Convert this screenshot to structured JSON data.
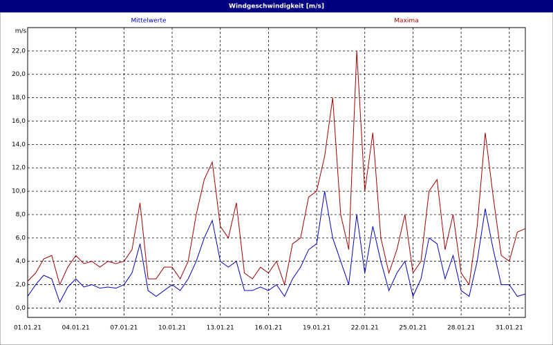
{
  "chart_data": {
    "type": "line",
    "title": "Windgeschwindigkeit [m/s]",
    "ylabel": "m/s",
    "x": [
      0,
      0.5,
      1,
      1.5,
      2,
      2.5,
      3,
      3.5,
      4,
      4.5,
      5,
      5.5,
      6,
      6.5,
      7,
      7.5,
      8,
      8.5,
      9,
      9.5,
      10,
      10.5,
      11,
      11.5,
      12,
      12.5,
      13,
      13.5,
      14,
      14.5,
      15,
      15.5,
      16,
      16.5,
      17,
      17.5,
      18,
      18.5,
      19,
      19.5,
      20,
      20.5,
      21,
      21.5,
      22,
      22.5,
      23,
      23.5,
      24,
      24.5,
      25,
      25.5,
      26,
      26.5,
      27,
      27.5,
      28,
      28.5,
      29,
      29.5,
      30,
      30.5,
      31
    ],
    "series": [
      {
        "name": "Mittelwerte",
        "color": "#0000c0",
        "values": [
          1.0,
          2.0,
          2.8,
          2.5,
          0.5,
          1.8,
          2.5,
          1.8,
          2.0,
          1.7,
          1.8,
          1.7,
          2.0,
          3.0,
          5.5,
          1.5,
          1.0,
          1.5,
          2.0,
          1.5,
          2.5,
          4.0,
          6.0,
          7.5,
          4.0,
          3.5,
          4.0,
          1.5,
          1.5,
          1.8,
          1.5,
          2.0,
          1.0,
          2.5,
          3.5,
          5.0,
          5.5,
          10.0,
          6.0,
          4.0,
          2.0,
          8.0,
          3.0,
          7.0,
          4.0,
          1.5,
          3.0,
          4.0,
          1.0,
          2.5,
          6.0,
          5.5,
          2.5,
          4.5,
          1.5,
          1.0,
          4.0,
          8.5,
          5.0,
          2.0,
          2.0,
          1.0,
          1.2
        ]
      },
      {
        "name": "Maxima",
        "color": "#a00000",
        "values": [
          2.3,
          3.0,
          4.2,
          4.5,
          2.0,
          3.5,
          4.5,
          3.8,
          4.0,
          3.5,
          4.0,
          3.8,
          4.0,
          5.0,
          9.0,
          2.5,
          2.5,
          3.5,
          3.5,
          2.5,
          4.0,
          8.0,
          11.0,
          12.5,
          7.0,
          6.0,
          9.0,
          3.0,
          2.5,
          3.5,
          3.0,
          4.0,
          2.0,
          5.5,
          6.0,
          9.5,
          10.0,
          13.0,
          18.0,
          8.0,
          5.0,
          22.0,
          10.0,
          15.0,
          6.0,
          3.0,
          5.0,
          8.0,
          3.0,
          4.0,
          10.0,
          11.0,
          5.0,
          8.0,
          3.0,
          2.0,
          7.0,
          15.0,
          9.5,
          4.5,
          4.0,
          6.5,
          6.8
        ]
      }
    ],
    "xlim": [
      0,
      31
    ],
    "xticks": [
      {
        "value": 0,
        "label": "01.01.21"
      },
      {
        "value": 3,
        "label": "04.01.21"
      },
      {
        "value": 6,
        "label": "07.01.21"
      },
      {
        "value": 9,
        "label": "10.01.21"
      },
      {
        "value": 12,
        "label": "13.01.21"
      },
      {
        "value": 15,
        "label": "16.01.21"
      },
      {
        "value": 18,
        "label": "19.01.21"
      },
      {
        "value": 21,
        "label": "22.01.21"
      },
      {
        "value": 24,
        "label": "25.01.21"
      },
      {
        "value": 27,
        "label": "28.01.21"
      },
      {
        "value": 30,
        "label": "31.01.21"
      }
    ],
    "ylim": [
      -0.8,
      24
    ],
    "yticks": [
      {
        "value": 0,
        "label": "0,0"
      },
      {
        "value": 2,
        "label": "2,0"
      },
      {
        "value": 4,
        "label": "4,0"
      },
      {
        "value": 6,
        "label": "6,0"
      },
      {
        "value": 8,
        "label": "8,0"
      },
      {
        "value": 10,
        "label": "10,0"
      },
      {
        "value": 12,
        "label": "12,0"
      },
      {
        "value": 14,
        "label": "14,0"
      },
      {
        "value": 16,
        "label": "16,0"
      },
      {
        "value": 18,
        "label": "18,0"
      },
      {
        "value": 20,
        "label": "20,0"
      },
      {
        "value": 22,
        "label": "22,0"
      }
    ],
    "grid": true
  }
}
